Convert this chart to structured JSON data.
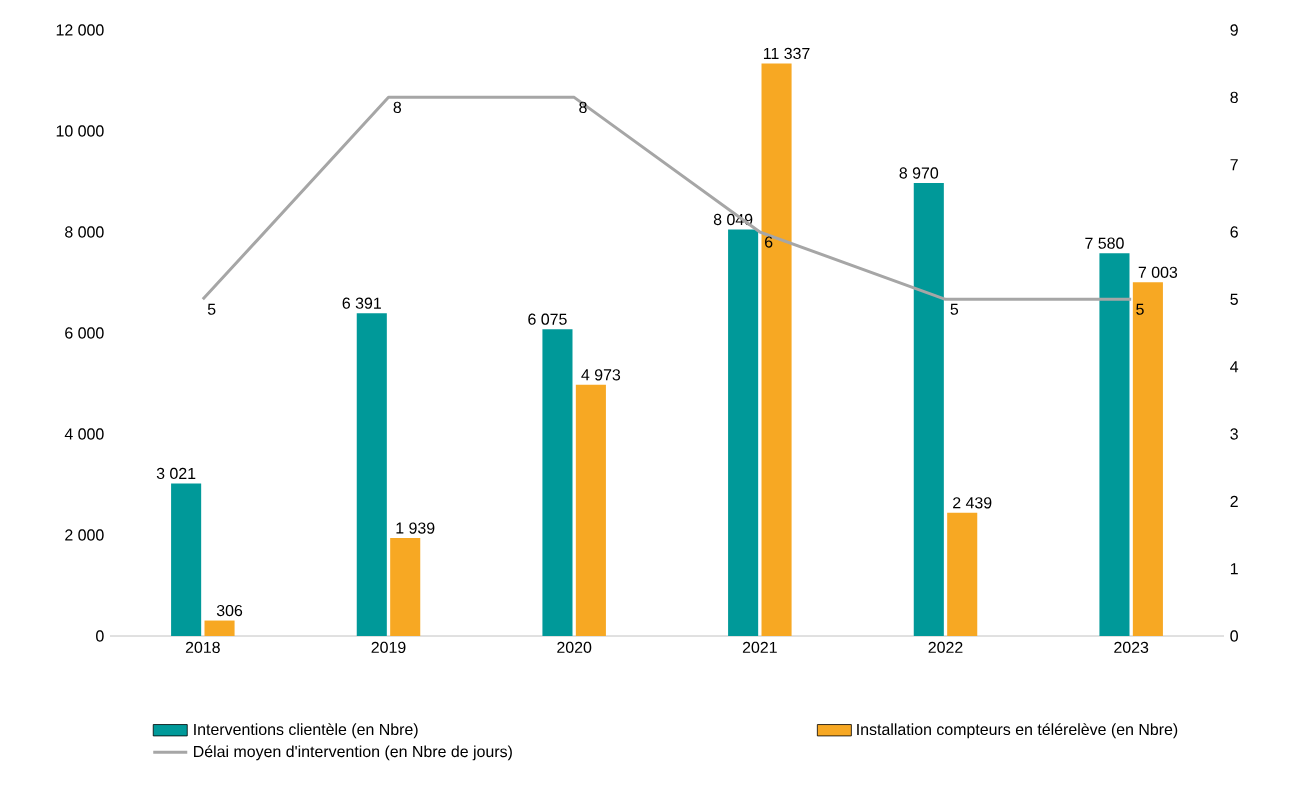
{
  "chart_data": {
    "type": "bar",
    "categories": [
      "2018",
      "2019",
      "2020",
      "2021",
      "2022",
      "2023"
    ],
    "series": [
      {
        "name": "Interventions clientèle (en Nbre)",
        "color": "#009999",
        "values": [
          3021,
          6391,
          6075,
          8049,
          8970,
          7580
        ],
        "value_labels": [
          "3 021",
          "6 391",
          "6 075",
          "8 049",
          "8 970",
          "7 580"
        ]
      },
      {
        "name": "Installation compteurs en télérelève (en Nbre)",
        "color": "#f7a823",
        "values": [
          306,
          1939,
          4973,
          11337,
          2439,
          7003
        ],
        "value_labels": [
          "306",
          "1 939",
          "4 973",
          "11 337",
          "2 439",
          "7 003"
        ]
      },
      {
        "name": "Délai moyen d'intervention (en Nbre de jours)",
        "type": "line",
        "axis": "y2",
        "color": "#a6a6a6",
        "values": [
          5,
          8,
          8,
          6,
          5,
          5
        ],
        "value_labels": [
          "5",
          "8",
          "8",
          "6",
          "5",
          "5"
        ]
      }
    ],
    "ylim": [
      0,
      12000
    ],
    "yticks": [
      0,
      {
        "value": 2000,
        "label": "2 000"
      },
      {
        "value": 4000,
        "label": "4 000"
      },
      {
        "value": 6000,
        "label": "6 000"
      },
      {
        "value": 8000,
        "label": "8 000"
      },
      {
        "value": 10000,
        "label": "10 000"
      },
      {
        "value": 12000,
        "label": "12 000"
      }
    ],
    "y2lim": [
      0,
      9
    ],
    "y2ticks": [
      0,
      1,
      2,
      3,
      4,
      5,
      6,
      7,
      8,
      9
    ],
    "legend": "bottom",
    "grid": false
  }
}
